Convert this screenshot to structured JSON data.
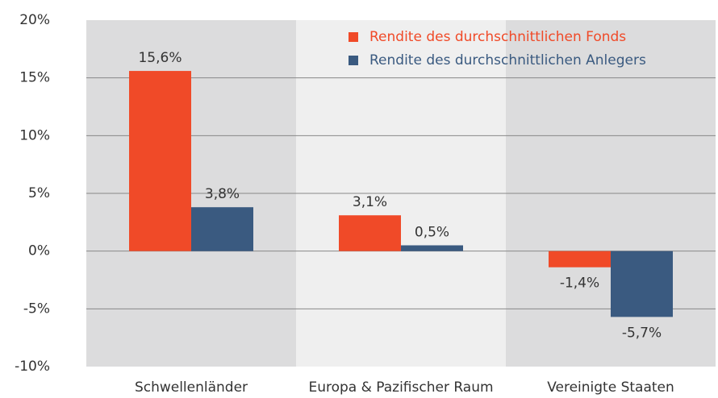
{
  "chart_data": {
    "type": "bar",
    "categories": [
      "Schwellenländer",
      "Europa & Pazifischer Raum",
      "Vereinigte Staaten"
    ],
    "series": [
      {
        "name": "Rendite des durchschnittlichen Fonds",
        "color": "#f04a28",
        "values": [
          15.6,
          3.1,
          -1.4
        ],
        "value_labels": [
          "15,6%",
          "3,1%",
          "-1,4%"
        ]
      },
      {
        "name": "Rendite des durchschnittlichen Anlegers",
        "color": "#3a5a80",
        "values": [
          3.8,
          0.5,
          -5.7
        ],
        "value_labels": [
          "3,8%",
          "0,5%",
          "-5,7%"
        ]
      }
    ],
    "ylim": [
      -10,
      20
    ],
    "yticks": [
      {
        "value": -10,
        "label": "-10%"
      },
      {
        "value": -5,
        "label": "-5%"
      },
      {
        "value": 0,
        "label": "0%"
      },
      {
        "value": 5,
        "label": "5%"
      },
      {
        "value": 10,
        "label": "10%"
      },
      {
        "value": 15,
        "label": "15%"
      },
      {
        "value": 20,
        "label": "20%"
      }
    ],
    "grid": true,
    "legend": "top"
  }
}
